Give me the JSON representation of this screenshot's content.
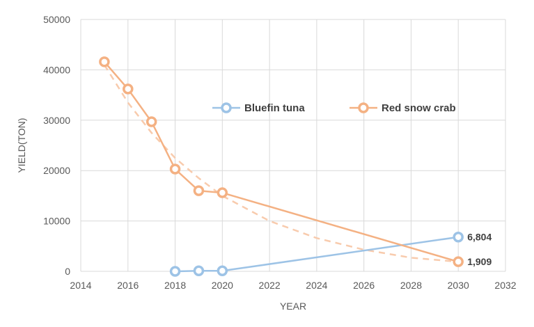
{
  "chart_data": {
    "type": "scatter",
    "xlabel": "YEAR",
    "ylabel": "YIELD(TON)",
    "xlim": [
      2014,
      2032
    ],
    "ylim": [
      0,
      50000
    ],
    "x_ticks": [
      "2014",
      "2016",
      "2018",
      "2020",
      "2022",
      "2024",
      "2026",
      "2028",
      "2030",
      "2032"
    ],
    "y_ticks": [
      "0",
      "10000",
      "20000",
      "30000",
      "40000",
      "50000"
    ],
    "grid": "vertical and horizontal",
    "legend": "top-right",
    "series": [
      {
        "name": "Bluefin tuna",
        "color": "#9dc3e6",
        "marker": "hollow-circle",
        "x": [
          2018,
          2019,
          2020,
          2030
        ],
        "y": [
          0,
          100,
          100,
          6804
        ]
      },
      {
        "name": "Red snow crab",
        "color": "#f4b183",
        "marker": "hollow-circle",
        "x": [
          2015,
          2016,
          2017,
          2018,
          2019,
          2020,
          2030
        ],
        "y": [
          41600,
          36200,
          29700,
          20300,
          16000,
          15600,
          1909
        ]
      }
    ],
    "trendline": {
      "series": "Red snow crab",
      "style": "dashed",
      "color": "#f8cbad",
      "x": [
        2015,
        2016,
        2017,
        2018,
        2019,
        2020,
        2022,
        2024,
        2026,
        2028,
        2030
      ],
      "y": [
        41000,
        33500,
        27500,
        22500,
        18500,
        15000,
        10000,
        6600,
        4300,
        2700,
        1900
      ]
    },
    "annotations": [
      {
        "text": "6,804",
        "x": 2030,
        "y": 6804
      },
      {
        "text": "1,909",
        "x": 2030,
        "y": 1909
      }
    ]
  }
}
